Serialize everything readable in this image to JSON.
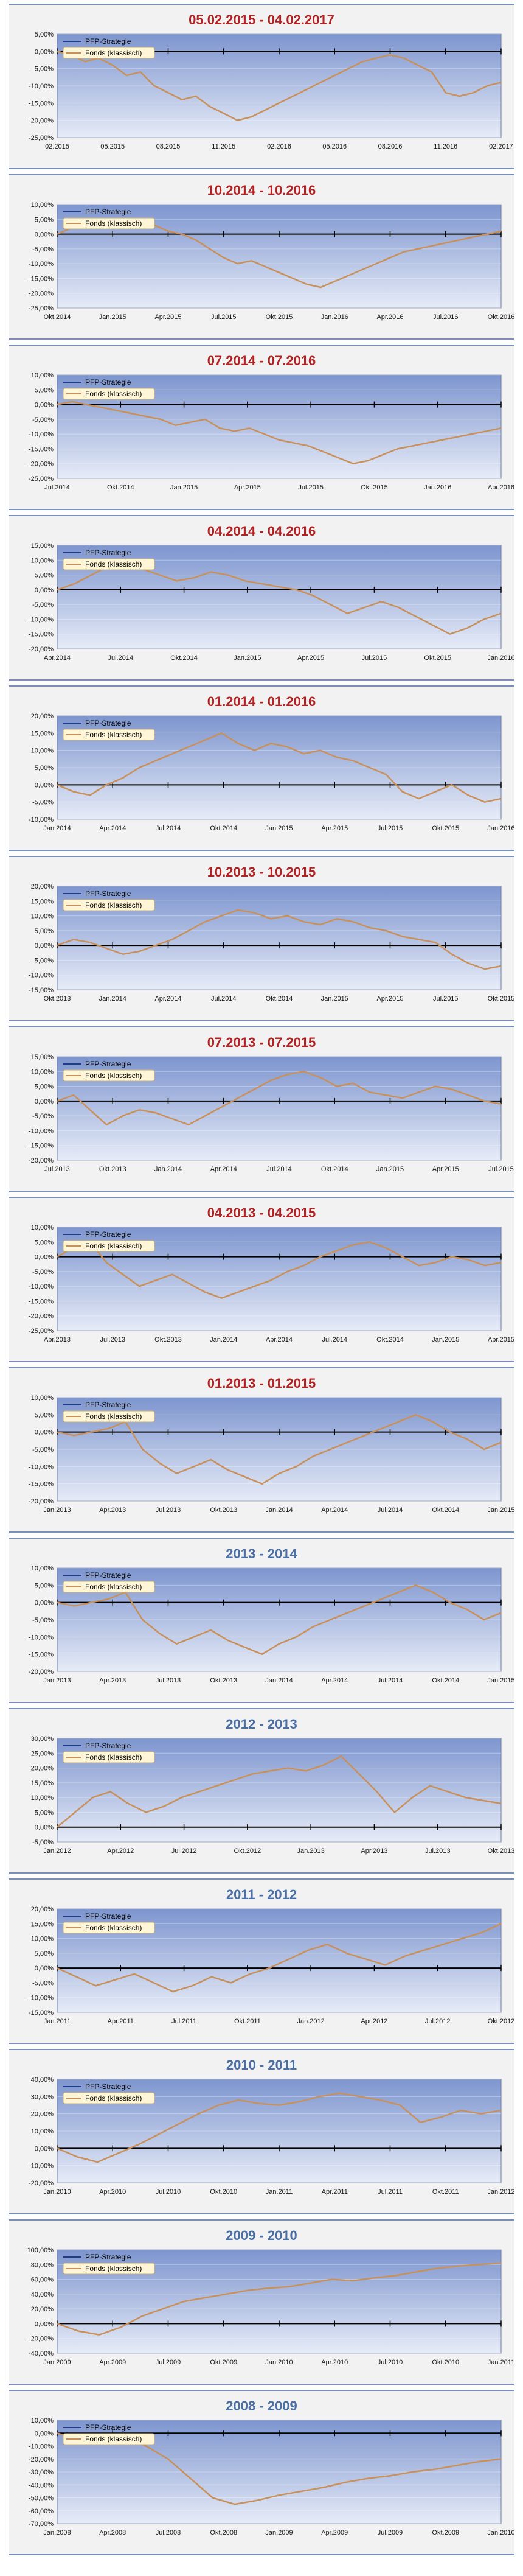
{
  "chart_data": [
    {
      "type": "line",
      "title": "05.02.2015 - 04.02.2017",
      "title_color": "#b22222",
      "legend": [
        "PFP-Strategie",
        "Fonds (klassisch)"
      ],
      "yticks": [
        "5,00%",
        "0,00%",
        "-5,00%",
        "-10,00%",
        "-15,00%",
        "-20,00%",
        "-25,00%"
      ],
      "xticks": [
        "02.2015",
        "05.2015",
        "08.2015",
        "11.2015",
        "02.2016",
        "05.2016",
        "08.2016",
        "11.2016",
        "02.2017"
      ],
      "ylim": [
        -25,
        5
      ],
      "series": [
        {
          "name": "Fonds (klassisch)",
          "values": [
            0,
            -1,
            -3,
            -2,
            -4,
            -7,
            -6,
            -10,
            -12,
            -14,
            -13,
            -16,
            -18,
            -20,
            -19,
            -17,
            -15,
            -13,
            -11,
            -9,
            -7,
            -5,
            -3,
            -2,
            -1,
            -2,
            -4,
            -6,
            -12,
            -13,
            -12,
            -10,
            -9
          ]
        }
      ]
    },
    {
      "type": "line",
      "title": "10.2014 - 10.2016",
      "title_color": "#b22222",
      "legend": [
        "PFP-Strategie",
        "Fonds (klassisch)"
      ],
      "yticks": [
        "10,00%",
        "5,00%",
        "0,00%",
        "-5,00%",
        "-10,00%",
        "-15,00%",
        "-20,00%",
        "-25,00%"
      ],
      "xticks": [
        "Okt.2014",
        "Jan.2015",
        "Apr.2015",
        "Jul.2015",
        "Okt.2015",
        "Jan.2016",
        "Apr.2016",
        "Jul.2016",
        "Okt.2016"
      ],
      "ylim": [
        -25,
        10
      ],
      "series": [
        {
          "name": "Fonds (klassisch)",
          "values": [
            0,
            2,
            4,
            3,
            5,
            4,
            2,
            3,
            1,
            0,
            -2,
            -5,
            -8,
            -10,
            -9,
            -11,
            -13,
            -15,
            -17,
            -18,
            -16,
            -14,
            -12,
            -10,
            -8,
            -6,
            -5,
            -4,
            -3,
            -2,
            -1,
            0,
            1
          ]
        }
      ]
    },
    {
      "type": "line",
      "title": "07.2014 - 07.2016",
      "title_color": "#b22222",
      "legend": [
        "PFP-Strategie",
        "Fonds (klassisch)"
      ],
      "yticks": [
        "10,00%",
        "5,00%",
        "0,00%",
        "-5,00%",
        "-10,00%",
        "-15,00%",
        "-20,00%",
        "-25,00%"
      ],
      "xticks": [
        "Jul.2014",
        "Okt.2014",
        "Jan.2015",
        "Apr.2015",
        "Jul.2015",
        "Okt.2015",
        "Jan.2016",
        "Apr.2016"
      ],
      "ylim": [
        -25,
        10
      ],
      "series": [
        {
          "name": "Fonds (klassisch)",
          "values": [
            0,
            1,
            0,
            -1,
            -2,
            -3,
            -4,
            -5,
            -7,
            -6,
            -5,
            -8,
            -9,
            -8,
            -10,
            -12,
            -13,
            -14,
            -16,
            -18,
            -20,
            -19,
            -17,
            -15,
            -14,
            -13,
            -12,
            -11,
            -10,
            -9,
            -8
          ]
        }
      ]
    },
    {
      "type": "line",
      "title": "04.2014 - 04.2016",
      "title_color": "#b22222",
      "legend": [
        "PFP-Strategie",
        "Fonds (klassisch)"
      ],
      "yticks": [
        "15,00%",
        "10,00%",
        "5,00%",
        "0,00%",
        "-5,00%",
        "-10,00%",
        "-15,00%",
        "-20,00%"
      ],
      "xticks": [
        "Apr.2014",
        "Jul.2014",
        "Okt.2014",
        "Jan.2015",
        "Apr.2015",
        "Jul.2015",
        "Okt.2015",
        "Jan.2016"
      ],
      "ylim": [
        -20,
        15
      ],
      "series": [
        {
          "name": "Fonds (klassisch)",
          "values": [
            0,
            2,
            5,
            8,
            10,
            7,
            5,
            3,
            4,
            6,
            5,
            3,
            2,
            1,
            0,
            -2,
            -5,
            -8,
            -6,
            -4,
            -6,
            -9,
            -12,
            -15,
            -13,
            -10,
            -8
          ]
        }
      ]
    },
    {
      "type": "line",
      "title": "01.2014 - 01.2016",
      "title_color": "#b22222",
      "legend": [
        "PFP-Strategie",
        "Fonds (klassisch)"
      ],
      "yticks": [
        "20,00%",
        "15,00%",
        "10,00%",
        "5,00%",
        "0,00%",
        "-5,00%",
        "-10,00%"
      ],
      "xticks": [
        "Jan.2014",
        "Apr.2014",
        "Jul.2014",
        "Okt.2014",
        "Jan.2015",
        "Apr.2015",
        "Jul.2015",
        "Okt.2015",
        "Jan.2016"
      ],
      "ylim": [
        -10,
        20
      ],
      "series": [
        {
          "name": "Fonds (klassisch)",
          "values": [
            0,
            -2,
            -3,
            0,
            2,
            5,
            7,
            9,
            11,
            13,
            15,
            12,
            10,
            12,
            11,
            9,
            10,
            8,
            7,
            5,
            3,
            -2,
            -4,
            -2,
            0,
            -3,
            -5,
            -4
          ]
        }
      ]
    },
    {
      "type": "line",
      "title": "10.2013 - 10.2015",
      "title_color": "#b22222",
      "legend": [
        "PFP-Strategie",
        "Fonds (klassisch)"
      ],
      "yticks": [
        "20,00%",
        "15,00%",
        "10,00%",
        "5,00%",
        "0,00%",
        "-5,00%",
        "-10,00%",
        "-15,00%"
      ],
      "xticks": [
        "Okt.2013",
        "Jan.2014",
        "Apr.2014",
        "Jul.2014",
        "Okt.2014",
        "Jan.2015",
        "Apr.2015",
        "Jul.2015",
        "Okt.2015"
      ],
      "ylim": [
        -15,
        20
      ],
      "series": [
        {
          "name": "Fonds (klassisch)",
          "values": [
            0,
            2,
            1,
            -1,
            -3,
            -2,
            0,
            2,
            5,
            8,
            10,
            12,
            11,
            9,
            10,
            8,
            7,
            9,
            8,
            6,
            5,
            3,
            2,
            1,
            -3,
            -6,
            -8,
            -7
          ]
        }
      ]
    },
    {
      "type": "line",
      "title": "07.2013 - 07.2015",
      "title_color": "#b22222",
      "legend": [
        "PFP-Strategie",
        "Fonds (klassisch)"
      ],
      "yticks": [
        "15,00%",
        "10,00%",
        "5,00%",
        "0,00%",
        "-5,00%",
        "-10,00%",
        "-15,00%",
        "-20,00%"
      ],
      "xticks": [
        "Jul.2013",
        "Okt.2013",
        "Jan.2014",
        "Apr.2014",
        "Jul.2014",
        "Okt.2014",
        "Jan.2015",
        "Apr.2015",
        "Jul.2015"
      ],
      "ylim": [
        -20,
        15
      ],
      "series": [
        {
          "name": "Fonds (klassisch)",
          "values": [
            0,
            2,
            -3,
            -8,
            -5,
            -3,
            -4,
            -6,
            -8,
            -5,
            -2,
            1,
            4,
            7,
            9,
            10,
            8,
            5,
            6,
            3,
            2,
            1,
            3,
            5,
            4,
            2,
            0,
            -1
          ]
        }
      ]
    },
    {
      "type": "line",
      "title": "04.2013 - 04.2015",
      "title_color": "#b22222",
      "legend": [
        "PFP-Strategie",
        "Fonds (klassisch)"
      ],
      "yticks": [
        "10,00%",
        "5,00%",
        "0,00%",
        "-5,00%",
        "-10,00%",
        "-15,00%",
        "-20,00%",
        "-25,00%"
      ],
      "xticks": [
        "Apr.2013",
        "Jul.2013",
        "Okt.2013",
        "Jan.2014",
        "Apr.2014",
        "Jul.2014",
        "Okt.2014",
        "Jan.2015",
        "Apr.2015"
      ],
      "ylim": [
        -25,
        10
      ],
      "series": [
        {
          "name": "Fonds (klassisch)",
          "values": [
            0,
            3,
            5,
            -2,
            -6,
            -10,
            -8,
            -6,
            -9,
            -12,
            -14,
            -12,
            -10,
            -8,
            -5,
            -3,
            0,
            2,
            4,
            5,
            3,
            0,
            -3,
            -2,
            0,
            -1,
            -3,
            -2
          ]
        }
      ]
    },
    {
      "type": "line",
      "title": "01.2013 - 01.2015",
      "title_color": "#b22222",
      "legend": [
        "PFP-Strategie",
        "Fonds (klassisch)"
      ],
      "yticks": [
        "10,00%",
        "5,00%",
        "0,00%",
        "-5,00%",
        "-10,00%",
        "-15,00%",
        "-20,00%"
      ],
      "xticks": [
        "Jan.2013",
        "Apr.2013",
        "Jul.2013",
        "Okt.2013",
        "Jan.2014",
        "Apr.2014",
        "Jul.2014",
        "Okt.2014",
        "Jan.2015"
      ],
      "ylim": [
        -20,
        10
      ],
      "series": [
        {
          "name": "Fonds (klassisch)",
          "values": [
            0,
            -1,
            0,
            1,
            3,
            -5,
            -9,
            -12,
            -10,
            -8,
            -11,
            -13,
            -15,
            -12,
            -10,
            -7,
            -5,
            -3,
            -1,
            1,
            3,
            5,
            3,
            0,
            -2,
            -5,
            -3
          ]
        }
      ]
    },
    {
      "type": "line",
      "title": "2013 - 2014",
      "title_color": "#4a6fa5",
      "legend": [
        "PFP-Strategie",
        "Fonds (klassisch)"
      ],
      "yticks": [
        "10,00%",
        "5,00%",
        "0,00%",
        "-5,00%",
        "-10,00%",
        "-15,00%",
        "-20,00%"
      ],
      "xticks": [
        "Jan.2013",
        "Apr.2013",
        "Jul.2013",
        "Okt.2013",
        "Jan.2014",
        "Apr.2014",
        "Jul.2014",
        "Okt.2014",
        "Jan.2015"
      ],
      "ylim": [
        -20,
        10
      ],
      "series": [
        {
          "name": "Fonds (klassisch)",
          "values": [
            0,
            -1,
            0,
            1,
            3,
            -5,
            -9,
            -12,
            -10,
            -8,
            -11,
            -13,
            -15,
            -12,
            -10,
            -7,
            -5,
            -3,
            -1,
            1,
            3,
            5,
            3,
            0,
            -2,
            -5,
            -3
          ]
        }
      ]
    },
    {
      "type": "line",
      "title": "2012 - 2013",
      "title_color": "#4a6fa5",
      "legend": [
        "PFP-Strategie",
        "Fonds (klassisch)"
      ],
      "yticks": [
        "30,00%",
        "25,00%",
        "20,00%",
        "15,00%",
        "10,00%",
        "5,00%",
        "0,00%",
        "-5,00%"
      ],
      "xticks": [
        "Jan.2012",
        "Apr.2012",
        "Jul.2012",
        "Okt.2012",
        "Jan.2013",
        "Apr.2013",
        "Jul.2013",
        "Okt.2013"
      ],
      "ylim": [
        -5,
        30
      ],
      "series": [
        {
          "name": "Fonds (klassisch)",
          "values": [
            0,
            5,
            10,
            12,
            8,
            5,
            7,
            10,
            12,
            14,
            16,
            18,
            19,
            20,
            19,
            21,
            24,
            18,
            12,
            5,
            10,
            14,
            12,
            10,
            9,
            8
          ]
        }
      ]
    },
    {
      "type": "line",
      "title": "2011 - 2012",
      "title_color": "#4a6fa5",
      "legend": [
        "PFP-Strategie",
        "Fonds (klassisch)"
      ],
      "yticks": [
        "20,00%",
        "15,00%",
        "10,00%",
        "5,00%",
        "0,00%",
        "-5,00%",
        "-10,00%",
        "-15,00%"
      ],
      "xticks": [
        "Jan.2011",
        "Apr.2011",
        "Jul.2011",
        "Okt.2011",
        "Jan.2012",
        "Apr.2012",
        "Jul.2012",
        "Okt.2012"
      ],
      "ylim": [
        -15,
        20
      ],
      "series": [
        {
          "name": "Fonds (klassisch)",
          "values": [
            0,
            -3,
            -6,
            -4,
            -2,
            -5,
            -8,
            -6,
            -3,
            -5,
            -2,
            0,
            3,
            6,
            8,
            5,
            3,
            1,
            4,
            6,
            8,
            10,
            12,
            15
          ]
        }
      ]
    },
    {
      "type": "line",
      "title": "2010 - 2011",
      "title_color": "#4a6fa5",
      "legend": [
        "PFP-Strategie",
        "Fonds (klassisch)"
      ],
      "yticks": [
        "40,00%",
        "30,00%",
        "20,00%",
        "10,00%",
        "0,00%",
        "-10,00%",
        "-20,00%"
      ],
      "xticks": [
        "Jan.2010",
        "Apr.2010",
        "Jul.2010",
        "Okt.2010",
        "Jan.2011",
        "Apr.2011",
        "Jul.2011",
        "Okt.2011",
        "Jan.2012"
      ],
      "ylim": [
        -20,
        40
      ],
      "series": [
        {
          "name": "Fonds (klassisch)",
          "values": [
            0,
            -5,
            -8,
            -3,
            2,
            8,
            14,
            20,
            25,
            28,
            26,
            25,
            27,
            30,
            32,
            30,
            28,
            25,
            15,
            18,
            22,
            20,
            22
          ]
        }
      ]
    },
    {
      "type": "line",
      "title": "2009 - 2010",
      "title_color": "#4a6fa5",
      "legend": [
        "PFP-Strategie",
        "Fonds (klassisch)"
      ],
      "yticks": [
        "100,00%",
        "80,00%",
        "60,00%",
        "40,00%",
        "20,00%",
        "0,00%",
        "-20,00%",
        "-40,00%"
      ],
      "xticks": [
        "Jan.2009",
        "Apr.2009",
        "Jul.2009",
        "Okt.2009",
        "Jan.2010",
        "Apr.2010",
        "Jul.2010",
        "Okt.2010",
        "Jan.2011"
      ],
      "ylim": [
        -40,
        100
      ],
      "series": [
        {
          "name": "Fonds (klassisch)",
          "values": [
            0,
            -10,
            -15,
            -5,
            10,
            20,
            30,
            35,
            40,
            45,
            48,
            50,
            55,
            60,
            58,
            62,
            65,
            70,
            75,
            78,
            80,
            82
          ]
        }
      ]
    },
    {
      "type": "line",
      "title": "2008 - 2009",
      "title_color": "#4a6fa5",
      "legend": [
        "PFP-Strategie",
        "Fonds (klassisch)"
      ],
      "yticks": [
        "10,00%",
        "0,00%",
        "-10,00%",
        "-20,00%",
        "-30,00%",
        "-40,00%",
        "-50,00%",
        "-60,00%",
        "-70,00%"
      ],
      "xticks": [
        "Jan.2008",
        "Apr.2008",
        "Jul.2008",
        "Okt.2008",
        "Jan.2009",
        "Apr.2009",
        "Jul.2009",
        "Okt.2009",
        "Jan.2010"
      ],
      "ylim": [
        -70,
        10
      ],
      "series": [
        {
          "name": "Fonds (klassisch)",
          "values": [
            0,
            -5,
            -3,
            -2,
            -10,
            -20,
            -35,
            -50,
            -55,
            -52,
            -48,
            -45,
            -42,
            -38,
            -35,
            -33,
            -30,
            -28,
            -25,
            -22,
            -20
          ]
        }
      ]
    }
  ]
}
